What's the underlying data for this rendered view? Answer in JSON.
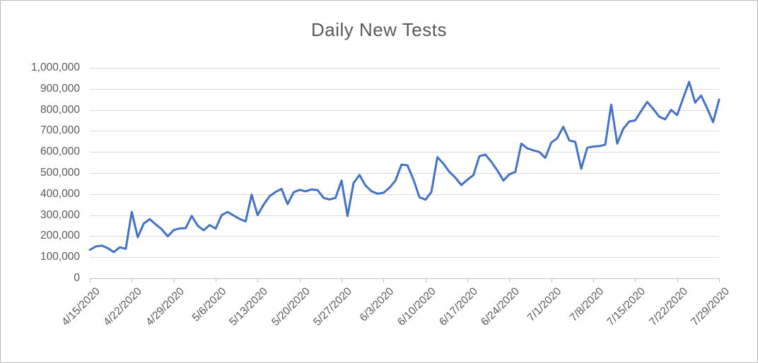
{
  "chart": {
    "title": "Daily New Tests",
    "line_color": "#4472C4",
    "gridline_color": "#d9d9d9",
    "axis_color": "#bfbfbf",
    "text_color": "#595959"
  },
  "chart_data": {
    "type": "line",
    "title": "Daily New Tests",
    "xlabel": "",
    "ylabel": "",
    "ylim": [
      0,
      1000000
    ],
    "grid": "horizontal",
    "legend": "none",
    "y_tick_labels": [
      "0",
      "100,000",
      "200,000",
      "300,000",
      "400,000",
      "500,000",
      "600,000",
      "700,000",
      "800,000",
      "900,000",
      "1,000,000"
    ],
    "x_tick_labels": [
      "4/15/2020",
      "4/22/2020",
      "4/29/2020",
      "5/6/2020",
      "5/13/2020",
      "5/20/2020",
      "5/27/2020",
      "6/3/2020",
      "6/10/2020",
      "6/17/2020",
      "6/24/2020",
      "7/1/2020",
      "7/8/2020",
      "7/15/2020",
      "7/22/2020",
      "7/29/2020"
    ],
    "x": [
      "4/15/2020",
      "4/16/2020",
      "4/17/2020",
      "4/18/2020",
      "4/19/2020",
      "4/20/2020",
      "4/21/2020",
      "4/22/2020",
      "4/23/2020",
      "4/24/2020",
      "4/25/2020",
      "4/26/2020",
      "4/27/2020",
      "4/28/2020",
      "4/29/2020",
      "4/30/2020",
      "5/1/2020",
      "5/2/2020",
      "5/3/2020",
      "5/4/2020",
      "5/5/2020",
      "5/6/2020",
      "5/7/2020",
      "5/8/2020",
      "5/9/2020",
      "5/10/2020",
      "5/11/2020",
      "5/12/2020",
      "5/13/2020",
      "5/14/2020",
      "5/15/2020",
      "5/16/2020",
      "5/17/2020",
      "5/18/2020",
      "5/19/2020",
      "5/20/2020",
      "5/21/2020",
      "5/22/2020",
      "5/23/2020",
      "5/24/2020",
      "5/25/2020",
      "5/26/2020",
      "5/27/2020",
      "5/28/2020",
      "5/29/2020",
      "5/30/2020",
      "5/31/2020",
      "6/1/2020",
      "6/2/2020",
      "6/3/2020",
      "6/4/2020",
      "6/5/2020",
      "6/6/2020",
      "6/7/2020",
      "6/8/2020",
      "6/9/2020",
      "6/10/2020",
      "6/11/2020",
      "6/12/2020",
      "6/13/2020",
      "6/14/2020",
      "6/15/2020",
      "6/16/2020",
      "6/17/2020",
      "6/18/2020",
      "6/19/2020",
      "6/20/2020",
      "6/21/2020",
      "6/22/2020",
      "6/23/2020",
      "6/24/2020",
      "6/25/2020",
      "6/26/2020",
      "6/27/2020",
      "6/28/2020",
      "6/29/2020",
      "6/30/2020",
      "7/1/2020",
      "7/2/2020",
      "7/3/2020",
      "7/4/2020",
      "7/5/2020",
      "7/6/2020",
      "7/7/2020",
      "7/8/2020",
      "7/9/2020",
      "7/10/2020",
      "7/11/2020",
      "7/12/2020",
      "7/13/2020",
      "7/14/2020",
      "7/15/2020",
      "7/16/2020",
      "7/17/2020",
      "7/18/2020",
      "7/19/2020",
      "7/20/2020",
      "7/21/2020",
      "7/22/2020",
      "7/23/2020",
      "7/24/2020",
      "7/25/2020",
      "7/26/2020",
      "7/27/2020",
      "7/28/2020",
      "7/29/2020"
    ],
    "values": [
      135000,
      151000,
      155000,
      143000,
      124000,
      147000,
      140000,
      315000,
      195000,
      260000,
      281000,
      256000,
      233000,
      199000,
      229000,
      237000,
      238000,
      296000,
      250000,
      228000,
      253000,
      236000,
      300000,
      315000,
      298000,
      282000,
      270000,
      397000,
      300000,
      350000,
      390000,
      410000,
      425000,
      352000,
      408000,
      420000,
      413000,
      422000,
      419000,
      382000,
      374000,
      382000,
      464000,
      296000,
      452000,
      491000,
      441000,
      413000,
      402000,
      406000,
      430000,
      464000,
      540000,
      537000,
      469000,
      385000,
      373000,
      410000,
      575000,
      545000,
      505000,
      478000,
      443000,
      468000,
      490000,
      580000,
      588000,
      553000,
      512000,
      464000,
      494000,
      505000,
      640000,
      617000,
      608000,
      600000,
      572000,
      645000,
      665000,
      720000,
      655000,
      648000,
      520000,
      620000,
      626000,
      628000,
      635000,
      825000,
      640000,
      710000,
      745000,
      750000,
      795000,
      838000,
      805000,
      768000,
      755000,
      800000,
      775000,
      855000,
      933000,
      835000,
      868000,
      808000,
      742000,
      849000
    ]
  }
}
